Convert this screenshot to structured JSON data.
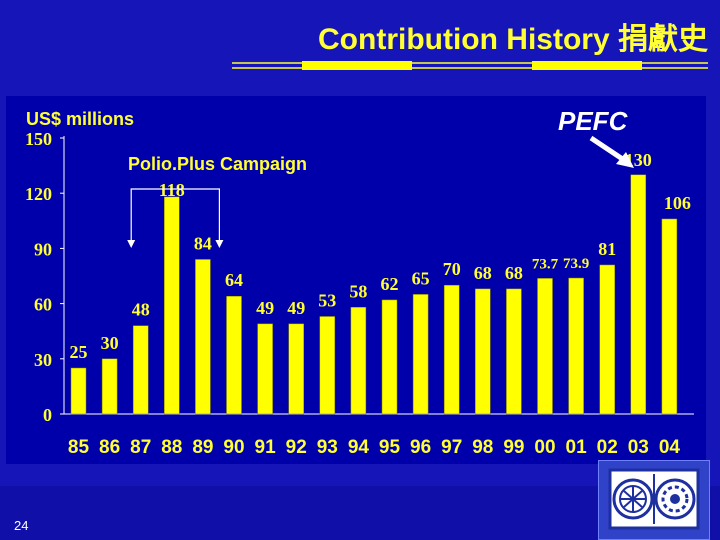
{
  "slide": {
    "title": "Contribution History 捐獻史",
    "page_number": "24",
    "logo_icon": "rotary-foundation-logos-icon",
    "colors": {
      "background": "#1616b8",
      "panel": "#0000aa",
      "bar": "#ffff00",
      "text": "#ffff33"
    }
  },
  "chart_data": {
    "type": "bar",
    "ylabel": "US$ millions",
    "ylim": [
      0,
      150
    ],
    "yticks": [
      0,
      30,
      60,
      90,
      120,
      150
    ],
    "categories": [
      "85",
      "86",
      "87",
      "88",
      "89",
      "90",
      "91",
      "92",
      "93",
      "94",
      "95",
      "96",
      "97",
      "98",
      "99",
      "00",
      "01",
      "02",
      "03",
      "04"
    ],
    "values": [
      25,
      30,
      48,
      118,
      84,
      64,
      49,
      49,
      53,
      58,
      62,
      65,
      70,
      68,
      68,
      73.7,
      73.9,
      81,
      130,
      106
    ],
    "value_labels": [
      "25",
      "30",
      "48",
      "118",
      "84",
      "64",
      "49",
      "49",
      "53",
      "58",
      "62",
      "65",
      "70",
      "68",
      "68",
      "73.7",
      "73.9",
      "81",
      "130",
      "106"
    ],
    "annotations": [
      {
        "text": "Polio.Plus Campaign",
        "target_categories": [
          "87",
          "89"
        ]
      },
      {
        "text": "PEFC",
        "target_category": "03"
      }
    ],
    "grid": false,
    "legend": "none"
  }
}
